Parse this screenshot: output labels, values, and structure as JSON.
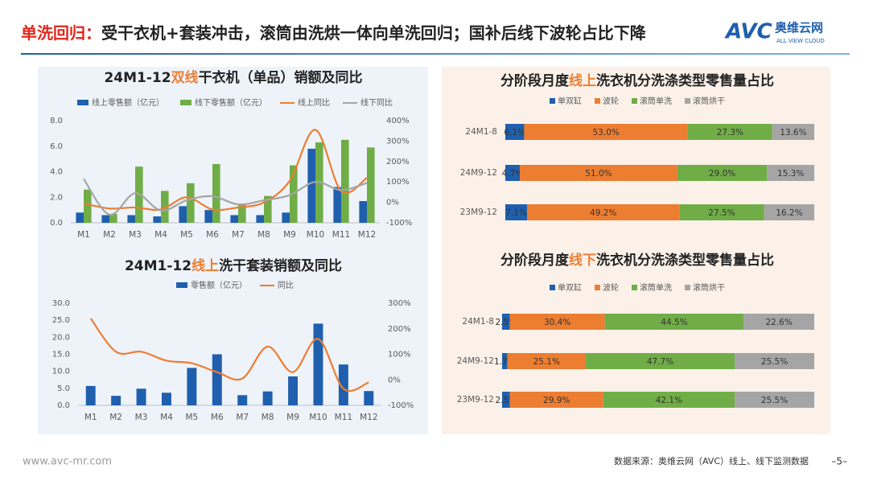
{
  "header": {
    "title_parts": [
      "单洗回归：",
      "受干衣机+套装冲击，滚筒由洗烘一体向单洗回归；国补后线下波轮占比下降"
    ],
    "logo": {
      "mark": "AVC",
      "name": "奥维云网",
      "tagline": "ALL VIEW CLOUD"
    }
  },
  "footer": {
    "website": "www.avc-mr.com",
    "source": "数据来源：奥维云网（AVC）线上、线下监测数据",
    "page": "–5–"
  },
  "chart_data": [
    {
      "type": "combo",
      "title": [
        "24M1-12",
        "双线",
        "干衣机（单品）销额及同比"
      ],
      "categories": [
        "M1",
        "M2",
        "M3",
        "M4",
        "M5",
        "M6",
        "M7",
        "M8",
        "M9",
        "M10",
        "M11",
        "M12"
      ],
      "series": [
        {
          "name": "线上零售额（亿元）",
          "type": "bar",
          "color": "#1f5fae",
          "values": [
            0.8,
            0.6,
            0.6,
            0.5,
            1.3,
            1.0,
            0.6,
            0.6,
            0.8,
            5.8,
            2.8,
            1.7
          ]
        },
        {
          "name": "线下零售额（亿元）",
          "type": "bar",
          "color": "#70ad47",
          "values": [
            2.6,
            0.7,
            4.4,
            2.5,
            3.1,
            4.6,
            1.5,
            2.1,
            4.5,
            6.3,
            6.5,
            5.9
          ]
        },
        {
          "name": "线上同比",
          "type": "line",
          "axis": "y2",
          "color": "#ed7d31",
          "values": [
            -5,
            -30,
            -25,
            -35,
            25,
            -35,
            -25,
            0,
            105,
            355,
            55,
            120
          ]
        },
        {
          "name": "线下同比",
          "type": "line",
          "axis": "y2",
          "color": "#a5a5a5",
          "values": [
            115,
            -60,
            45,
            -40,
            10,
            30,
            -10,
            10,
            35,
            100,
            60,
            95
          ]
        }
      ],
      "ylim": [
        0,
        8
      ],
      "yticks": [
        {
          "value": 0,
          "label": "0.0"
        },
        {
          "value": 2,
          "label": "2.0"
        },
        {
          "value": 4,
          "label": "4.0"
        },
        {
          "value": 6,
          "label": "6.0"
        },
        {
          "value": 8,
          "label": "8.0"
        }
      ],
      "y2lim": [
        -100,
        400
      ],
      "y2ticks": [
        {
          "value": -100,
          "label": "-100%"
        },
        {
          "value": 0,
          "label": "0%"
        },
        {
          "value": 100,
          "label": "100%"
        },
        {
          "value": 200,
          "label": "200%"
        },
        {
          "value": 300,
          "label": "300%"
        },
        {
          "value": 400,
          "label": "400%"
        }
      ],
      "grid": false,
      "smooth": true,
      "legend": "top"
    },
    {
      "type": "combo",
      "title": [
        "24M1-12",
        "线上",
        "洗干套装销额及同比"
      ],
      "categories": [
        "M1",
        "M2",
        "M3",
        "M4",
        "M5",
        "M6",
        "M7",
        "M8",
        "M9",
        "M10",
        "M11",
        "M12"
      ],
      "series": [
        {
          "name": "零售额（亿元）",
          "type": "bar",
          "color": "#1f5fae",
          "values": [
            5.7,
            2.8,
            4.9,
            3.7,
            11.0,
            15.0,
            3.0,
            4.1,
            8.5,
            24.0,
            12.0,
            4.2
          ]
        },
        {
          "name": "同比",
          "type": "line",
          "axis": "y2",
          "color": "#ed7d31",
          "values": [
            240,
            110,
            110,
            75,
            65,
            30,
            5,
            130,
            30,
            160,
            -35,
            -10
          ]
        }
      ],
      "ylim": [
        0,
        30
      ],
      "yticks": [
        {
          "value": 0,
          "label": "0.0"
        },
        {
          "value": 5,
          "label": "5.0"
        },
        {
          "value": 10,
          "label": "10.0"
        },
        {
          "value": 15,
          "label": "15.0"
        },
        {
          "value": 20,
          "label": "20.0"
        },
        {
          "value": 25,
          "label": "25.0"
        },
        {
          "value": 30,
          "label": "30.0"
        }
      ],
      "y2lim": [
        -100,
        300
      ],
      "y2ticks": [
        {
          "value": -100,
          "label": "-100%"
        },
        {
          "value": 0,
          "label": "0%"
        },
        {
          "value": 100,
          "label": "100%"
        },
        {
          "value": 200,
          "label": "200%"
        },
        {
          "value": 300,
          "label": "300%"
        }
      ],
      "grid": false,
      "smooth": true,
      "legend": "top"
    },
    {
      "type": "stacked_barh",
      "title": [
        "分阶段月度",
        "线上",
        "洗衣机分洗涤类型零售量占比"
      ],
      "categories": [
        "24M1-8",
        "24M9-12",
        "23M9-12"
      ],
      "series": [
        {
          "name": "单双缸",
          "color": "#1f5fae",
          "values": [
            6.1,
            4.7,
            7.1
          ],
          "value_labels": [
            "6.1%",
            "4.7%",
            "7.1%"
          ]
        },
        {
          "name": "波轮",
          "color": "#ed7d31",
          "values": [
            53.0,
            51.0,
            49.2
          ],
          "value_labels": [
            "53.0%",
            "51.0%",
            "49.2%"
          ]
        },
        {
          "name": "滚筒单洗",
          "color": "#70ad47",
          "values": [
            27.3,
            29.0,
            27.5
          ],
          "value_labels": [
            "27.3%",
            "29.0%",
            "27.5%"
          ]
        },
        {
          "name": "滚筒烘干",
          "color": "#a5a5a5",
          "values": [
            13.6,
            15.3,
            16.2
          ],
          "value_labels": [
            "13.6%",
            "15.3%",
            "16.2%"
          ]
        }
      ],
      "legend": "top"
    },
    {
      "type": "stacked_barh",
      "title": [
        "分阶段月度",
        "线下",
        "洗衣机分洗涤类型零售量占比"
      ],
      "categories": [
        "24M1-8",
        "24M9-12",
        "23M9-12"
      ],
      "series": [
        {
          "name": "单双缸",
          "color": "#1f5fae",
          "values": [
            2.5,
            1.7,
            2.5
          ],
          "value_labels": [
            "2.5%",
            "1.7%",
            "2.5%"
          ]
        },
        {
          "name": "波轮",
          "color": "#ed7d31",
          "values": [
            30.4,
            25.1,
            29.9
          ],
          "value_labels": [
            "30.4%",
            "25.1%",
            "29.9%"
          ]
        },
        {
          "name": "滚筒单洗",
          "color": "#70ad47",
          "values": [
            44.5,
            47.7,
            42.1
          ],
          "value_labels": [
            "44.5%",
            "47.7%",
            "42.1%"
          ]
        },
        {
          "name": "滚筒烘干",
          "color": "#a5a5a5",
          "values": [
            22.6,
            25.5,
            25.5
          ],
          "value_labels": [
            "22.6%",
            "25.5%",
            "25.5%"
          ]
        }
      ],
      "legend": "top"
    }
  ]
}
